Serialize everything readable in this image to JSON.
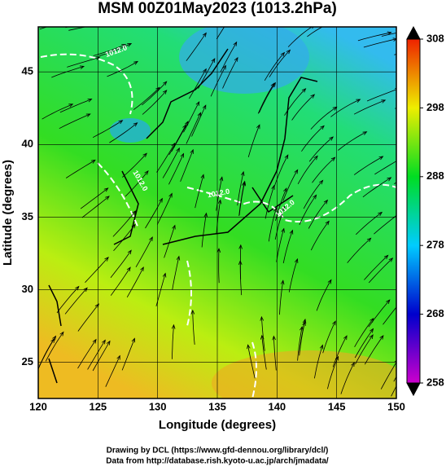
{
  "chart_data": {
    "type": "heatmap",
    "title": "MSM 00Z01May2023 (1013.2hPa)",
    "xlabel": "Longitude (degrees)",
    "ylabel": "Latitude  (degrees)",
    "xlim": [
      120,
      150
    ],
    "xticks": [
      120,
      125,
      130,
      135,
      140,
      145,
      150
    ],
    "ylim": [
      22.5,
      48.1
    ],
    "yticks": [
      25,
      30,
      35,
      40,
      45
    ],
    "colorbar": {
      "lim": [
        258,
        308
      ],
      "ticks": [
        258,
        268,
        278,
        288,
        298,
        308
      ],
      "colors": [
        "#cc00cc",
        "#0000cc",
        "#00ccff",
        "#00dd22",
        "#eeee00",
        "#ee2200"
      ]
    },
    "contour_labels": [
      "1012.0",
      "1012.0",
      "1012.0",
      "1012.0"
    ],
    "credits": [
      "Drawing by DCL (https://www.gfd-dennou.org/library/dcl/)",
      "Data from http://database.rish.kyoto-u.ac.jp/arch/jmadata/"
    ]
  }
}
